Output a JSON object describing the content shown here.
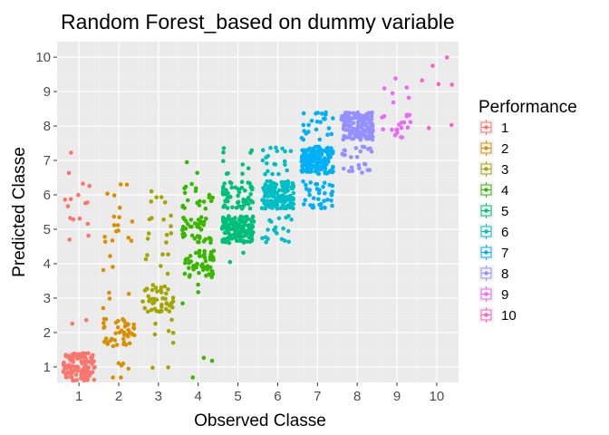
{
  "chart_data": {
    "type": "scatter",
    "title": "Random Forest_based on dummy variable",
    "xlabel": "Observed Classe",
    "ylabel": "Predicted Classe",
    "x_ticks": [
      "1",
      "2",
      "3",
      "4",
      "5",
      "6",
      "7",
      "8",
      "9",
      "10"
    ],
    "y_ticks": [
      "1",
      "2",
      "3",
      "4",
      "5",
      "6",
      "7",
      "8",
      "9",
      "10"
    ],
    "xlim": [
      0.45,
      10.55
    ],
    "ylim": [
      0.55,
      10.45
    ],
    "grid": true,
    "jitter": true,
    "legend": {
      "title": "Performance",
      "placement": "right",
      "entries": [
        {
          "name": "1",
          "color": "#F8766D"
        },
        {
          "name": "2",
          "color": "#D89000"
        },
        {
          "name": "3",
          "color": "#A3A500"
        },
        {
          "name": "4",
          "color": "#39B600"
        },
        {
          "name": "5",
          "color": "#00BF7D"
        },
        {
          "name": "6",
          "color": "#00BFC4"
        },
        {
          "name": "7",
          "color": "#00B0F6"
        },
        {
          "name": "8",
          "color": "#9590FF"
        },
        {
          "name": "9",
          "color": "#E76BF3"
        },
        {
          "name": "10",
          "color": "#FF62BC"
        }
      ]
    },
    "clusters": [
      {
        "observed": 1,
        "predicted": 1,
        "count": 120,
        "class": 1
      },
      {
        "observed": 1,
        "predicted": 2,
        "count": 2,
        "class": 1
      },
      {
        "observed": 1,
        "predicted": 5,
        "count": 6,
        "class": 1
      },
      {
        "observed": 1,
        "predicted": 6,
        "count": 8,
        "class": 1
      },
      {
        "observed": 1,
        "predicted": 7,
        "count": 2,
        "class": 1
      },
      {
        "observed": 2,
        "predicted": 1,
        "count": 6,
        "class": 2
      },
      {
        "observed": 2,
        "predicted": 2,
        "count": 45,
        "class": 2
      },
      {
        "observed": 2,
        "predicted": 3,
        "count": 4,
        "class": 2
      },
      {
        "observed": 2,
        "predicted": 4,
        "count": 3,
        "class": 2
      },
      {
        "observed": 2,
        "predicted": 5,
        "count": 12,
        "class": 2
      },
      {
        "observed": 2,
        "predicted": 6,
        "count": 5,
        "class": 2
      },
      {
        "observed": 3,
        "predicted": 1,
        "count": 2,
        "class": 3
      },
      {
        "observed": 3,
        "predicted": 2,
        "count": 6,
        "class": 3
      },
      {
        "observed": 3,
        "predicted": 3,
        "count": 45,
        "class": 3
      },
      {
        "observed": 3,
        "predicted": 4,
        "count": 6,
        "class": 3
      },
      {
        "observed": 3,
        "predicted": 5,
        "count": 10,
        "class": 3
      },
      {
        "observed": 3,
        "predicted": 6,
        "count": 5,
        "class": 3
      },
      {
        "observed": 4,
        "predicted": 1,
        "count": 3,
        "class": 4
      },
      {
        "observed": 4,
        "predicted": 3,
        "count": 3,
        "class": 4
      },
      {
        "observed": 4,
        "predicted": 4,
        "count": 55,
        "class": 4
      },
      {
        "observed": 4,
        "predicted": 5,
        "count": 40,
        "class": 4
      },
      {
        "observed": 4,
        "predicted": 6,
        "count": 20,
        "class": 4
      },
      {
        "observed": 4,
        "predicted": 7,
        "count": 2,
        "class": 4
      },
      {
        "observed": 5,
        "predicted": 4,
        "count": 2,
        "class": 5
      },
      {
        "observed": 5,
        "predicted": 5,
        "count": 150,
        "class": 5
      },
      {
        "observed": 5,
        "predicted": 6,
        "count": 60,
        "class": 5
      },
      {
        "observed": 5,
        "predicted": 7,
        "count": 10,
        "class": 5
      },
      {
        "observed": 6,
        "predicted": 5,
        "count": 20,
        "class": 6
      },
      {
        "observed": 6,
        "predicted": 6,
        "count": 170,
        "class": 6
      },
      {
        "observed": 6,
        "predicted": 7,
        "count": 20,
        "class": 6
      },
      {
        "observed": 7,
        "predicted": 6,
        "count": 40,
        "class": 7
      },
      {
        "observed": 7,
        "predicted": 7,
        "count": 170,
        "class": 7
      },
      {
        "observed": 7,
        "predicted": 8,
        "count": 25,
        "class": 7
      },
      {
        "observed": 8,
        "predicted": 7,
        "count": 25,
        "class": 8
      },
      {
        "observed": 8,
        "predicted": 8,
        "count": 150,
        "class": 8
      },
      {
        "observed": 9,
        "predicted": 8,
        "count": 20,
        "class": 9
      },
      {
        "observed": 9,
        "predicted": 9,
        "count": 6,
        "class": 9
      },
      {
        "observed": 10,
        "predicted": 8,
        "count": 2,
        "class": 10
      },
      {
        "observed": 10,
        "predicted": 9,
        "count": 3,
        "class": 10
      },
      {
        "observed": 10,
        "predicted": 10,
        "count": 2,
        "class": 10
      }
    ]
  }
}
